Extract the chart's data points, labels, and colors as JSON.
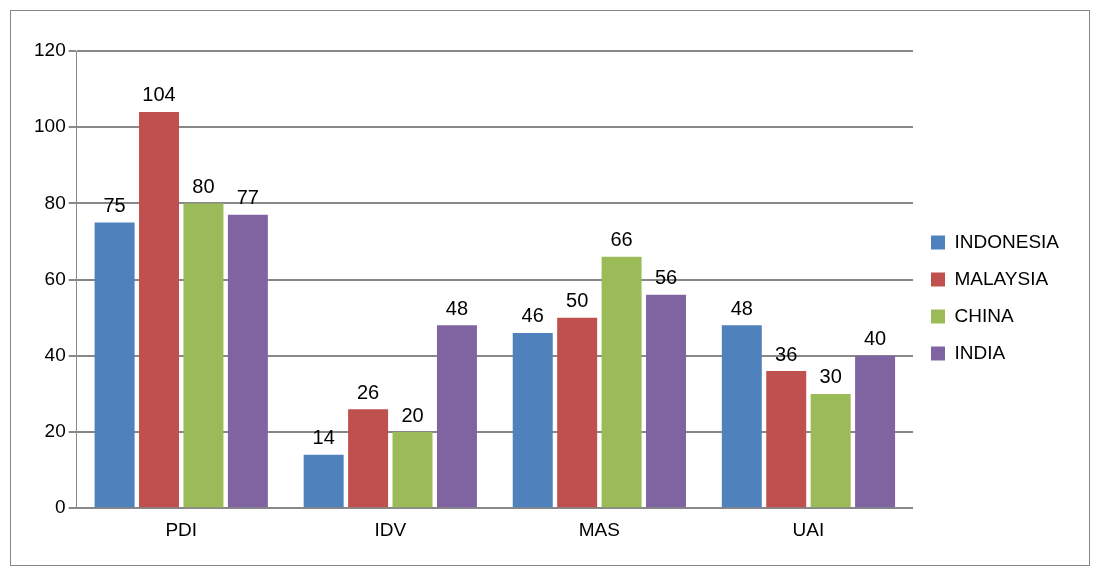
{
  "chart_data": {
    "type": "bar",
    "categories": [
      "PDI",
      "IDV",
      "MAS",
      "UAI"
    ],
    "series": [
      {
        "name": "INDONESIA",
        "color": "#4f81bd",
        "values": [
          75,
          14,
          46,
          48
        ]
      },
      {
        "name": "MALAYSIA",
        "color": "#c0504d",
        "values": [
          104,
          26,
          50,
          36
        ]
      },
      {
        "name": "CHINA",
        "color": "#9bbb59",
        "values": [
          80,
          20,
          66,
          30
        ]
      },
      {
        "name": "INDIA",
        "color": "#8064a2",
        "values": [
          77,
          48,
          56,
          40
        ]
      }
    ],
    "ylim": [
      0,
      120
    ],
    "yticks": [
      0,
      20,
      40,
      60,
      80,
      100,
      120
    ],
    "grid": "y",
    "legend": "right",
    "data_labels": true
  }
}
